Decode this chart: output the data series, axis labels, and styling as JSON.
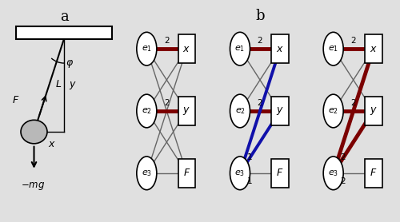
{
  "bg_color": "#e0e0e0",
  "dark_red": "#7B0000",
  "blue_color": "#1010AA",
  "gray_edge": "#666666",
  "node_fill": "#ffffff",
  "bob_fill": "#b8b8b8"
}
